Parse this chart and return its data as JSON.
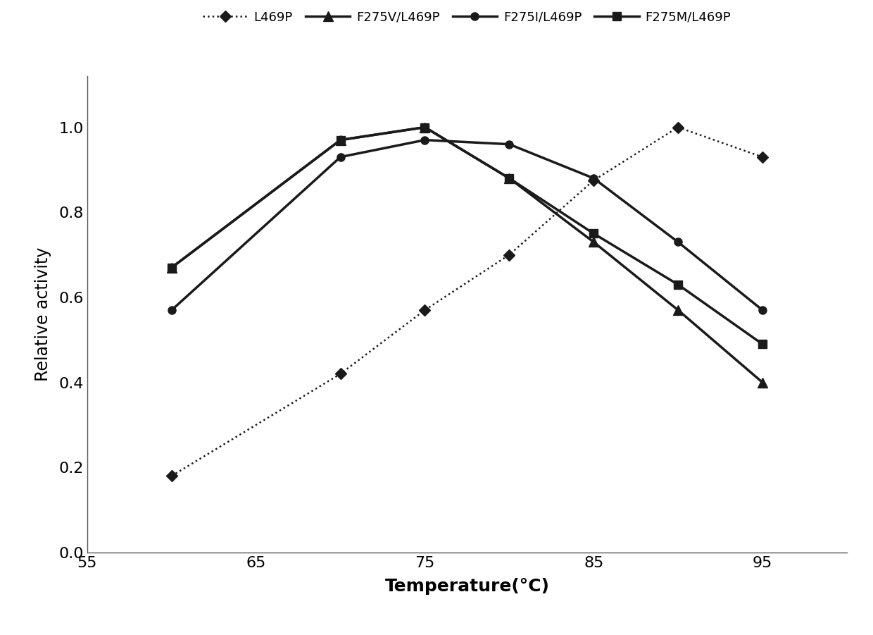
{
  "series": {
    "L469P": {
      "x": [
        60,
        70,
        75,
        80,
        85,
        90,
        95
      ],
      "y": [
        0.18,
        0.42,
        0.57,
        0.7,
        0.875,
        1.0,
        0.93
      ],
      "linestyle": "dotted",
      "marker": "D",
      "color": "#1a1a1a",
      "linewidth": 1.8,
      "markersize": 8,
      "label": "L469P"
    },
    "F275V/L469P": {
      "x": [
        60,
        70,
        75,
        80,
        85,
        90,
        95
      ],
      "y": [
        0.67,
        0.97,
        1.0,
        0.88,
        0.73,
        0.57,
        0.4
      ],
      "linestyle": "solid",
      "marker": "^",
      "color": "#1a1a1a",
      "linewidth": 2.5,
      "markersize": 10,
      "label": "F275V/L469P"
    },
    "F275I/L469P": {
      "x": [
        60,
        70,
        75,
        80,
        85,
        90,
        95
      ],
      "y": [
        0.57,
        0.93,
        0.97,
        0.96,
        0.88,
        0.73,
        0.57
      ],
      "linestyle": "solid",
      "marker": "o",
      "color": "#1a1a1a",
      "linewidth": 2.5,
      "markersize": 8,
      "label": "F275I/L469P"
    },
    "F275M/L469P": {
      "x": [
        60,
        70,
        75,
        80,
        85,
        90,
        95
      ],
      "y": [
        0.67,
        0.97,
        1.0,
        0.88,
        0.75,
        0.63,
        0.49
      ],
      "linestyle": "solid",
      "marker": "s",
      "color": "#1a1a1a",
      "linewidth": 2.5,
      "markersize": 8,
      "label": "F275M/L469P"
    }
  },
  "xlabel": "Temperature(°C)",
  "ylabel": "Relative activity",
  "xlim": [
    55,
    100
  ],
  "ylim": [
    0.0,
    1.12
  ],
  "xticks": [
    55,
    65,
    75,
    85,
    95
  ],
  "yticks": [
    0.0,
    0.2,
    0.4,
    0.6,
    0.8,
    1.0
  ],
  "xlabel_fontsize": 18,
  "ylabel_fontsize": 17,
  "tick_fontsize": 16,
  "legend_fontsize": 13,
  "background_color": "#ffffff"
}
